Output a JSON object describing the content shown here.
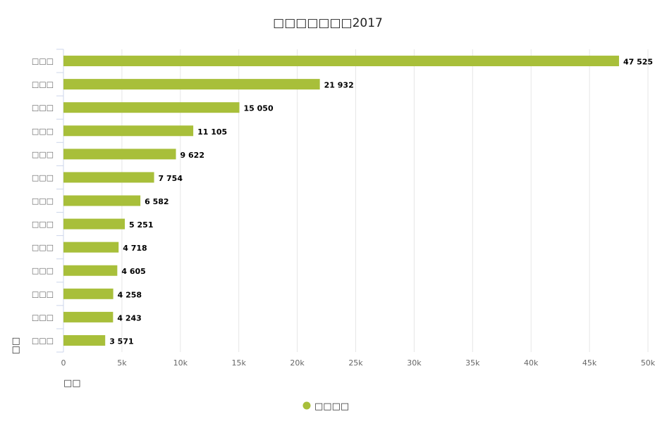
{
  "chart_data": {
    "type": "bar",
    "orientation": "horizontal",
    "title": "□□□□□□□2017",
    "ylabel": "□□",
    "xlabel": "□□",
    "categories": [
      "□□□",
      "□□□",
      "□□□",
      "□□□",
      "□□□",
      "□□□",
      "□□□",
      "□□□",
      "□□□",
      "□□□",
      "□□□",
      "□□□",
      "□□□"
    ],
    "series": [
      {
        "name": "□□□□",
        "color": "#a8bf3a",
        "values": [
          47525,
          21932,
          15050,
          11105,
          9622,
          7754,
          6582,
          5251,
          4718,
          4605,
          4258,
          4243,
          3571
        ],
        "labels": [
          "47 525",
          "21 932",
          "15 050",
          "11 105",
          "9 622",
          "7 754",
          "6 582",
          "5 251",
          "4 718",
          "4 605",
          "4 258",
          "4 243",
          "3 571"
        ]
      }
    ],
    "xlim": [
      0,
      50000
    ],
    "xticks": [
      0,
      5000,
      10000,
      15000,
      20000,
      25000,
      30000,
      35000,
      40000,
      45000,
      50000
    ],
    "xtick_labels": [
      "0",
      "5k",
      "10k",
      "15k",
      "20k",
      "25k",
      "30k",
      "35k",
      "40k",
      "45k",
      "50k"
    ],
    "grid": true,
    "legend": "bottom-center"
  }
}
